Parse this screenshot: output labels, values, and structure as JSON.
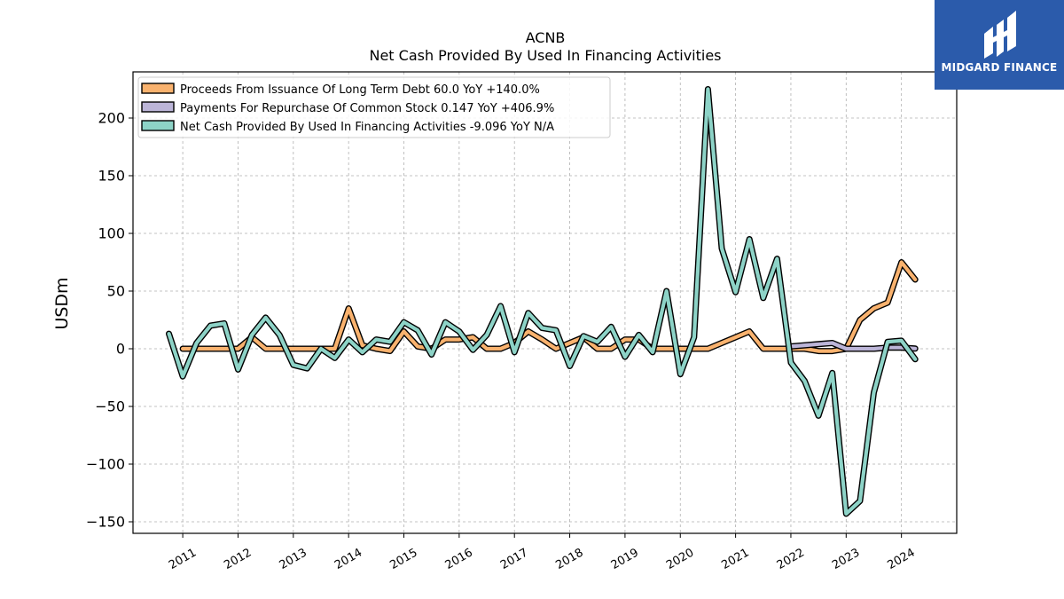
{
  "chart_data": {
    "type": "line",
    "title": "ACNB",
    "subtitle": "Net Cash Provided By Used In Financing Activities",
    "ylabel": "USDm",
    "xlabel": "",
    "ylim": [
      -160,
      240
    ],
    "yticks": [
      -150,
      -100,
      -50,
      0,
      50,
      100,
      150,
      200
    ],
    "ytick_labels": [
      "−150",
      "−100",
      "−50",
      "0",
      "50",
      "100",
      "150",
      "200"
    ],
    "xlim": [
      2010.1,
      2025.0
    ],
    "xticks": [
      2011,
      2012,
      2013,
      2014,
      2015,
      2016,
      2017,
      2018,
      2019,
      2020,
      2021,
      2022,
      2023,
      2024
    ],
    "grid": true,
    "legend_position": "top-left",
    "series": [
      {
        "name": "Proceeds From Issuance Of Long Term Debt",
        "legend_label": "Proceeds From Issuance Of Long Term Debt  60.0 YoY +140.0%",
        "color": "#f9b26e",
        "x": [
          2011.0,
          2011.25,
          2011.5,
          2011.75,
          2012.0,
          2012.25,
          2012.5,
          2012.75,
          2013.0,
          2013.25,
          2013.5,
          2013.75,
          2014.0,
          2014.25,
          2014.5,
          2014.75,
          2015.0,
          2015.25,
          2015.5,
          2015.75,
          2016.0,
          2016.25,
          2016.5,
          2016.75,
          2017.0,
          2017.25,
          2017.5,
          2017.75,
          2018.0,
          2018.25,
          2018.5,
          2018.75,
          2019.0,
          2019.25,
          2019.5,
          2019.75,
          2020.0,
          2020.25,
          2020.5,
          2020.75,
          2021.0,
          2021.25,
          2021.5,
          2021.75,
          2022.0,
          2022.25,
          2022.5,
          2022.75,
          2023.0,
          2023.25,
          2023.5,
          2023.75,
          2024.0,
          2024.25
        ],
        "y": [
          0,
          0,
          0,
          0,
          0,
          10,
          0,
          0,
          0,
          0,
          0,
          0,
          35,
          3,
          0,
          -2,
          15,
          2,
          0,
          8,
          8,
          10,
          0,
          0,
          5,
          15,
          8,
          0,
          5,
          10,
          0,
          0,
          8,
          8,
          0,
          0,
          0,
          0,
          0,
          5,
          10,
          15,
          0,
          0,
          0,
          0,
          -2,
          -2,
          0,
          25,
          35,
          40,
          75,
          60
        ]
      },
      {
        "name": "Payments For Repurchase Of Common Stock",
        "legend_label": "Payments For Repurchase Of Common Stock  0.147 YoY +406.9%",
        "color": "#bcb5d8",
        "x": [
          2022.0,
          2022.25,
          2022.5,
          2022.75,
          2023.0,
          2023.25,
          2023.5,
          2023.75,
          2024.0,
          2024.25
        ],
        "y": [
          2,
          3,
          4,
          5,
          0,
          0,
          0,
          1,
          1,
          0.147
        ]
      },
      {
        "name": "Net Cash Provided By Used In Financing Activities",
        "legend_label": "Net Cash Provided By Used In Financing Activities  -9.096 YoY N/A",
        "color": "#8dd3c7",
        "x": [
          2010.75,
          2011.0,
          2011.25,
          2011.5,
          2011.75,
          2012.0,
          2012.25,
          2012.5,
          2012.75,
          2013.0,
          2013.25,
          2013.5,
          2013.75,
          2014.0,
          2014.25,
          2014.5,
          2014.75,
          2015.0,
          2015.25,
          2015.5,
          2015.75,
          2016.0,
          2016.25,
          2016.5,
          2016.75,
          2017.0,
          2017.25,
          2017.5,
          2017.75,
          2018.0,
          2018.25,
          2018.5,
          2018.75,
          2019.0,
          2019.25,
          2019.5,
          2019.75,
          2020.0,
          2020.25,
          2020.5,
          2020.75,
          2021.0,
          2021.25,
          2021.5,
          2021.75,
          2022.0,
          2022.25,
          2022.5,
          2022.75,
          2023.0,
          2023.25,
          2023.5,
          2023.75,
          2024.0,
          2024.25
        ],
        "y": [
          13,
          -24,
          5,
          20,
          22,
          -18,
          12,
          27,
          12,
          -14,
          -17,
          0,
          -8,
          8,
          -3,
          8,
          6,
          23,
          16,
          -5,
          23,
          15,
          -1,
          12,
          37,
          -3,
          31,
          18,
          16,
          -15,
          11,
          6,
          19,
          -7,
          12,
          -3,
          50,
          -22,
          10,
          225,
          87,
          49,
          95,
          44,
          78,
          -12,
          -28,
          -58,
          -21,
          -143,
          -132,
          -38,
          6,
          7,
          -9.096
        ]
      }
    ]
  },
  "logo": {
    "brand_text": "MIDGARD FINANCE"
  }
}
